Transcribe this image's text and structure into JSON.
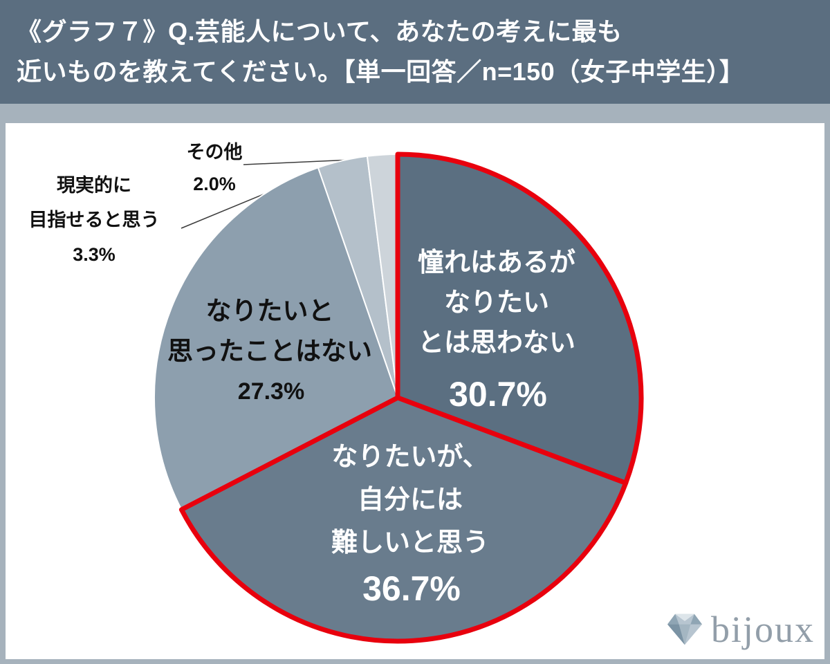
{
  "header": {
    "line1": "《グラフ７》Q.芸能人について、あなたの考えに最も",
    "line2": "近いものを教えてください。【単一回答／n=150（女子中学生）】"
  },
  "chart_data": {
    "type": "pie",
    "title": "Q.芸能人について、あなたの考えに最も近いものを教えてください。",
    "note": "単一回答／n=150（女子中学生）",
    "n": 150,
    "unit": "%",
    "start_angle": "12 o'clock",
    "direction": "clockwise",
    "categories": [
      "憧れはあるがなりたいとは思わない",
      "なりたいが、自分には難しいと思う",
      "なりたいと思ったことはない",
      "現実的に目指せると思う",
      "その他"
    ],
    "values": [
      30.7,
      36.7,
      27.3,
      3.3,
      2.0
    ],
    "colors": [
      "#5b6f81",
      "#697c8d",
      "#8d9fae",
      "#b4c0ca",
      "#cdd4da"
    ],
    "highlighted": [
      0,
      1
    ],
    "highlight_color": "#e8000d",
    "slice_labels": [
      {
        "lines": [
          "憧れはあるが",
          "なりたい",
          "とは思わない"
        ],
        "pct": "30.7%",
        "placement": "inside"
      },
      {
        "lines": [
          "なりたいが、",
          "自分には",
          "難しいと思う"
        ],
        "pct": "36.7%",
        "placement": "inside"
      },
      {
        "lines": [
          "なりたいと",
          "思ったことはない"
        ],
        "pct": "27.3%",
        "placement": "inside"
      },
      {
        "lines": [
          "現実的に",
          "目指せると思う"
        ],
        "pct": "3.3%",
        "placement": "outside"
      },
      {
        "lines": [
          "その他"
        ],
        "pct": "2.0%",
        "placement": "outside"
      }
    ]
  },
  "logo": {
    "text": "bijoux"
  }
}
